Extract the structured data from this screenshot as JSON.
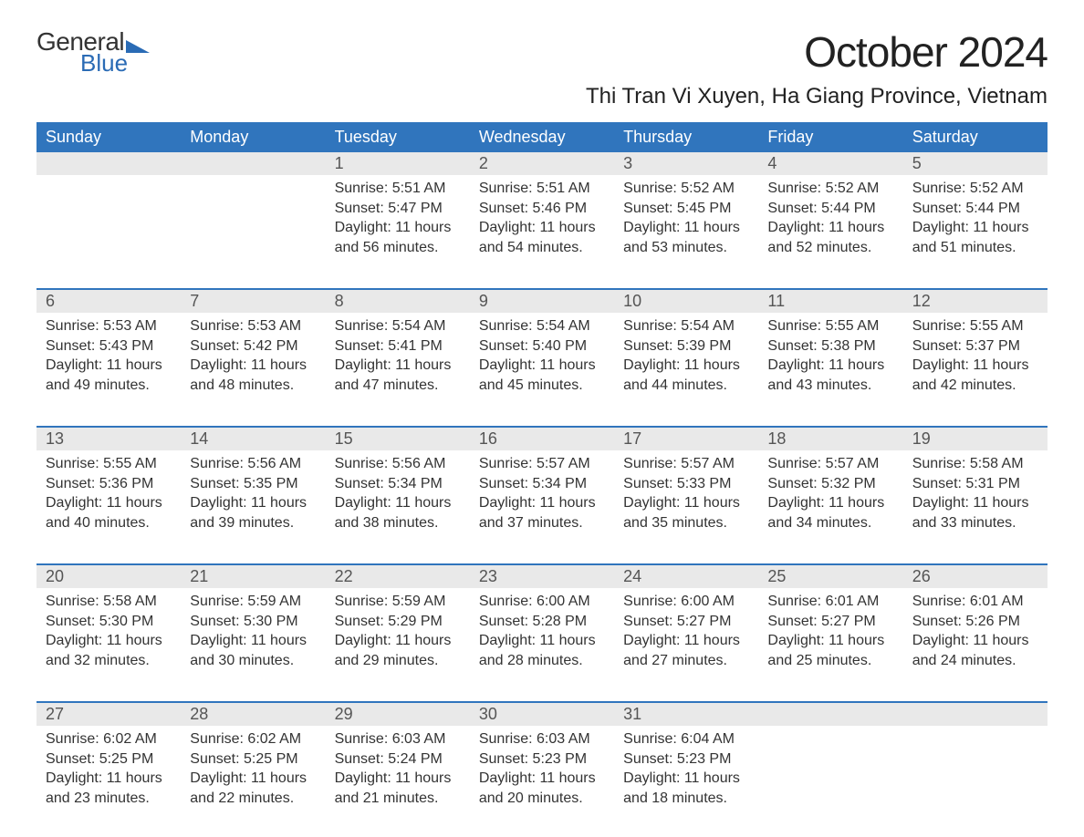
{
  "brand": {
    "general": "General",
    "blue": "Blue"
  },
  "title": "October 2024",
  "location": "Thi Tran Vi Xuyen, Ha Giang Province, Vietnam",
  "colors": {
    "header_bg": "#3075bd",
    "header_fg": "#ffffff",
    "daynum_bg": "#e9e9e9",
    "daynum_fg": "#555555",
    "week_border": "#3075bd",
    "text": "#333333",
    "brand_blue": "#2a6bb5"
  },
  "day_headers": [
    "Sunday",
    "Monday",
    "Tuesday",
    "Wednesday",
    "Thursday",
    "Friday",
    "Saturday"
  ],
  "weeks": [
    [
      {
        "num": "",
        "sunrise": "",
        "sunset": "",
        "daylight1": "",
        "daylight2": ""
      },
      {
        "num": "",
        "sunrise": "",
        "sunset": "",
        "daylight1": "",
        "daylight2": ""
      },
      {
        "num": "1",
        "sunrise": "Sunrise: 5:51 AM",
        "sunset": "Sunset: 5:47 PM",
        "daylight1": "Daylight: 11 hours",
        "daylight2": "and 56 minutes."
      },
      {
        "num": "2",
        "sunrise": "Sunrise: 5:51 AM",
        "sunset": "Sunset: 5:46 PM",
        "daylight1": "Daylight: 11 hours",
        "daylight2": "and 54 minutes."
      },
      {
        "num": "3",
        "sunrise": "Sunrise: 5:52 AM",
        "sunset": "Sunset: 5:45 PM",
        "daylight1": "Daylight: 11 hours",
        "daylight2": "and 53 minutes."
      },
      {
        "num": "4",
        "sunrise": "Sunrise: 5:52 AM",
        "sunset": "Sunset: 5:44 PM",
        "daylight1": "Daylight: 11 hours",
        "daylight2": "and 52 minutes."
      },
      {
        "num": "5",
        "sunrise": "Sunrise: 5:52 AM",
        "sunset": "Sunset: 5:44 PM",
        "daylight1": "Daylight: 11 hours",
        "daylight2": "and 51 minutes."
      }
    ],
    [
      {
        "num": "6",
        "sunrise": "Sunrise: 5:53 AM",
        "sunset": "Sunset: 5:43 PM",
        "daylight1": "Daylight: 11 hours",
        "daylight2": "and 49 minutes."
      },
      {
        "num": "7",
        "sunrise": "Sunrise: 5:53 AM",
        "sunset": "Sunset: 5:42 PM",
        "daylight1": "Daylight: 11 hours",
        "daylight2": "and 48 minutes."
      },
      {
        "num": "8",
        "sunrise": "Sunrise: 5:54 AM",
        "sunset": "Sunset: 5:41 PM",
        "daylight1": "Daylight: 11 hours",
        "daylight2": "and 47 minutes."
      },
      {
        "num": "9",
        "sunrise": "Sunrise: 5:54 AM",
        "sunset": "Sunset: 5:40 PM",
        "daylight1": "Daylight: 11 hours",
        "daylight2": "and 45 minutes."
      },
      {
        "num": "10",
        "sunrise": "Sunrise: 5:54 AM",
        "sunset": "Sunset: 5:39 PM",
        "daylight1": "Daylight: 11 hours",
        "daylight2": "and 44 minutes."
      },
      {
        "num": "11",
        "sunrise": "Sunrise: 5:55 AM",
        "sunset": "Sunset: 5:38 PM",
        "daylight1": "Daylight: 11 hours",
        "daylight2": "and 43 minutes."
      },
      {
        "num": "12",
        "sunrise": "Sunrise: 5:55 AM",
        "sunset": "Sunset: 5:37 PM",
        "daylight1": "Daylight: 11 hours",
        "daylight2": "and 42 minutes."
      }
    ],
    [
      {
        "num": "13",
        "sunrise": "Sunrise: 5:55 AM",
        "sunset": "Sunset: 5:36 PM",
        "daylight1": "Daylight: 11 hours",
        "daylight2": "and 40 minutes."
      },
      {
        "num": "14",
        "sunrise": "Sunrise: 5:56 AM",
        "sunset": "Sunset: 5:35 PM",
        "daylight1": "Daylight: 11 hours",
        "daylight2": "and 39 minutes."
      },
      {
        "num": "15",
        "sunrise": "Sunrise: 5:56 AM",
        "sunset": "Sunset: 5:34 PM",
        "daylight1": "Daylight: 11 hours",
        "daylight2": "and 38 minutes."
      },
      {
        "num": "16",
        "sunrise": "Sunrise: 5:57 AM",
        "sunset": "Sunset: 5:34 PM",
        "daylight1": "Daylight: 11 hours",
        "daylight2": "and 37 minutes."
      },
      {
        "num": "17",
        "sunrise": "Sunrise: 5:57 AM",
        "sunset": "Sunset: 5:33 PM",
        "daylight1": "Daylight: 11 hours",
        "daylight2": "and 35 minutes."
      },
      {
        "num": "18",
        "sunrise": "Sunrise: 5:57 AM",
        "sunset": "Sunset: 5:32 PM",
        "daylight1": "Daylight: 11 hours",
        "daylight2": "and 34 minutes."
      },
      {
        "num": "19",
        "sunrise": "Sunrise: 5:58 AM",
        "sunset": "Sunset: 5:31 PM",
        "daylight1": "Daylight: 11 hours",
        "daylight2": "and 33 minutes."
      }
    ],
    [
      {
        "num": "20",
        "sunrise": "Sunrise: 5:58 AM",
        "sunset": "Sunset: 5:30 PM",
        "daylight1": "Daylight: 11 hours",
        "daylight2": "and 32 minutes."
      },
      {
        "num": "21",
        "sunrise": "Sunrise: 5:59 AM",
        "sunset": "Sunset: 5:30 PM",
        "daylight1": "Daylight: 11 hours",
        "daylight2": "and 30 minutes."
      },
      {
        "num": "22",
        "sunrise": "Sunrise: 5:59 AM",
        "sunset": "Sunset: 5:29 PM",
        "daylight1": "Daylight: 11 hours",
        "daylight2": "and 29 minutes."
      },
      {
        "num": "23",
        "sunrise": "Sunrise: 6:00 AM",
        "sunset": "Sunset: 5:28 PM",
        "daylight1": "Daylight: 11 hours",
        "daylight2": "and 28 minutes."
      },
      {
        "num": "24",
        "sunrise": "Sunrise: 6:00 AM",
        "sunset": "Sunset: 5:27 PM",
        "daylight1": "Daylight: 11 hours",
        "daylight2": "and 27 minutes."
      },
      {
        "num": "25",
        "sunrise": "Sunrise: 6:01 AM",
        "sunset": "Sunset: 5:27 PM",
        "daylight1": "Daylight: 11 hours",
        "daylight2": "and 25 minutes."
      },
      {
        "num": "26",
        "sunrise": "Sunrise: 6:01 AM",
        "sunset": "Sunset: 5:26 PM",
        "daylight1": "Daylight: 11 hours",
        "daylight2": "and 24 minutes."
      }
    ],
    [
      {
        "num": "27",
        "sunrise": "Sunrise: 6:02 AM",
        "sunset": "Sunset: 5:25 PM",
        "daylight1": "Daylight: 11 hours",
        "daylight2": "and 23 minutes."
      },
      {
        "num": "28",
        "sunrise": "Sunrise: 6:02 AM",
        "sunset": "Sunset: 5:25 PM",
        "daylight1": "Daylight: 11 hours",
        "daylight2": "and 22 minutes."
      },
      {
        "num": "29",
        "sunrise": "Sunrise: 6:03 AM",
        "sunset": "Sunset: 5:24 PM",
        "daylight1": "Daylight: 11 hours",
        "daylight2": "and 21 minutes."
      },
      {
        "num": "30",
        "sunrise": "Sunrise: 6:03 AM",
        "sunset": "Sunset: 5:23 PM",
        "daylight1": "Daylight: 11 hours",
        "daylight2": "and 20 minutes."
      },
      {
        "num": "31",
        "sunrise": "Sunrise: 6:04 AM",
        "sunset": "Sunset: 5:23 PM",
        "daylight1": "Daylight: 11 hours",
        "daylight2": "and 18 minutes."
      },
      {
        "num": "",
        "sunrise": "",
        "sunset": "",
        "daylight1": "",
        "daylight2": ""
      },
      {
        "num": "",
        "sunrise": "",
        "sunset": "",
        "daylight1": "",
        "daylight2": ""
      }
    ]
  ]
}
